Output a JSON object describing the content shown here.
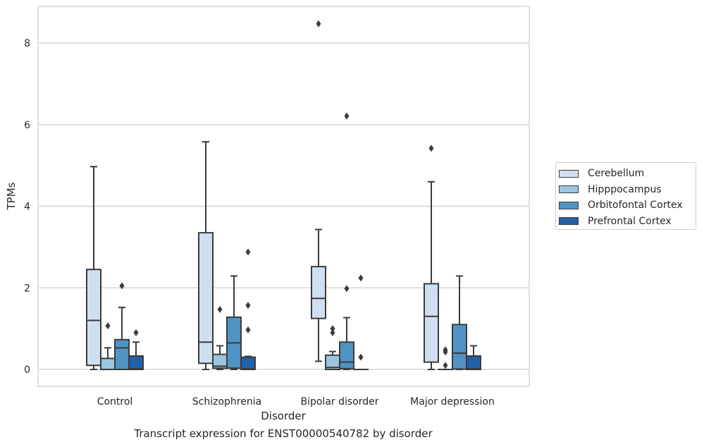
{
  "chart_data": {
    "type": "boxplot",
    "title": "",
    "caption": "Transcript expression for ENST00000540782 by disorder",
    "xlabel": "Disorder",
    "ylabel": "TPMs",
    "ylim": [
      -0.4,
      8.9
    ],
    "yticks": [
      0,
      2,
      4,
      6,
      8
    ],
    "grid": true,
    "legend_position": "right",
    "categories": [
      "Control",
      "Schizophrenia",
      "Bipolar disorder",
      "Major depression"
    ],
    "series": [
      {
        "name": "Cerebellum",
        "color": "#d0dff0",
        "boxes": [
          {
            "whislo": 0.0,
            "q1": 0.1,
            "median": 1.2,
            "q3": 2.45,
            "whishi": 4.97,
            "fliers": []
          },
          {
            "whislo": 0.0,
            "q1": 0.15,
            "median": 0.67,
            "q3": 3.35,
            "whishi": 5.58,
            "fliers": []
          },
          {
            "whislo": 0.2,
            "q1": 1.25,
            "median": 1.74,
            "q3": 2.52,
            "whishi": 3.43,
            "fliers": [
              8.47
            ]
          },
          {
            "whislo": 0.0,
            "q1": 0.18,
            "median": 1.3,
            "q3": 2.1,
            "whishi": 4.6,
            "fliers": [
              5.42
            ]
          }
        ]
      },
      {
        "name": "Hipppocampus",
        "color": "#9ac6e0",
        "boxes": [
          {
            "whislo": 0.0,
            "q1": 0.0,
            "median": 0.0,
            "q3": 0.27,
            "whishi": 0.53,
            "fliers": [
              1.07
            ]
          },
          {
            "whislo": 0.0,
            "q1": 0.03,
            "median": 0.08,
            "q3": 0.37,
            "whishi": 0.58,
            "fliers": [
              1.47
            ]
          },
          {
            "whislo": 0.0,
            "q1": 0.0,
            "median": 0.05,
            "q3": 0.35,
            "whishi": 0.44,
            "fliers": [
              0.9,
              1.0
            ]
          },
          {
            "whislo": 0.0,
            "q1": 0.0,
            "median": 0.0,
            "q3": 0.0,
            "whishi": 0.0,
            "fliers": [
              0.1,
              0.43,
              0.48
            ]
          }
        ]
      },
      {
        "name": "Orbitofontal Cortex",
        "color": "#5094c4",
        "boxes": [
          {
            "whislo": 0.0,
            "q1": 0.0,
            "median": 0.53,
            "q3": 0.73,
            "whishi": 1.52,
            "fliers": [
              2.05
            ]
          },
          {
            "whislo": 0.0,
            "q1": 0.03,
            "median": 0.65,
            "q3": 1.28,
            "whishi": 2.29,
            "fliers": []
          },
          {
            "whislo": 0.0,
            "q1": 0.02,
            "median": 0.18,
            "q3": 0.67,
            "whishi": 1.27,
            "fliers": [
              1.98,
              6.21
            ]
          },
          {
            "whislo": 0.0,
            "q1": 0.01,
            "median": 0.4,
            "q3": 1.1,
            "whishi": 2.29,
            "fliers": []
          }
        ]
      },
      {
        "name": "Prefrontal Cortex",
        "color": "#2260a8",
        "boxes": [
          {
            "whislo": 0.0,
            "q1": 0.0,
            "median": 0.02,
            "q3": 0.33,
            "whishi": 0.67,
            "fliers": [
              0.9
            ]
          },
          {
            "whislo": 0.0,
            "q1": 0.0,
            "median": 0.02,
            "q3": 0.3,
            "whishi": 0.32,
            "fliers": [
              0.97,
              1.57,
              2.88
            ]
          },
          {
            "whislo": 0.0,
            "q1": 0.0,
            "median": 0.0,
            "q3": 0.0,
            "whishi": 0.0,
            "fliers": [
              0.3,
              2.24
            ]
          },
          {
            "whislo": 0.0,
            "q1": 0.0,
            "median": 0.02,
            "q3": 0.33,
            "whishi": 0.58,
            "fliers": []
          }
        ]
      }
    ]
  }
}
